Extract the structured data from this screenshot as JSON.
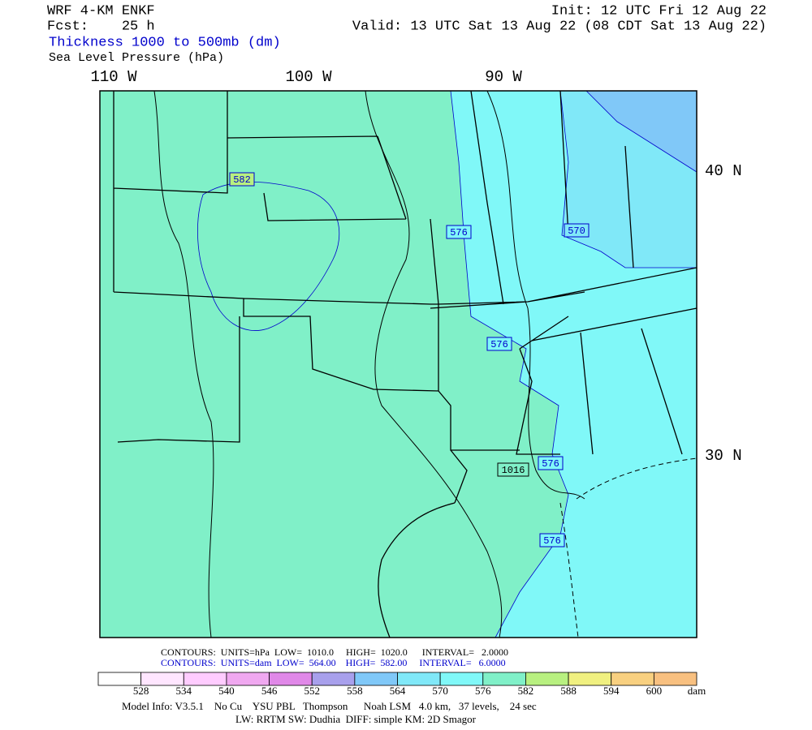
{
  "header": {
    "model": "WRF 4-KM ENKF",
    "forecast": "Fcst:    25 h",
    "field_shaded": "Thickness 1000 to 500mb (dm)",
    "field_contour": "Sea Level Pressure (hPa)",
    "init": "Init: 12 UTC Fri 12 Aug 22",
    "valid": "Valid: 13 UTC Sat 13 Aug 22 (08 CDT Sat 13 Aug 22)"
  },
  "map": {
    "longitude_labels": [
      "110 W",
      "100 W",
      "90 W"
    ],
    "latitude_labels": [
      "40 N",
      "30 N"
    ],
    "contour_labels": [
      "582",
      "576",
      "570",
      "576",
      "1016",
      "576",
      "576"
    ]
  },
  "legend": {
    "contours_pressure": "CONTOURS:  UNITS=hPa  LOW=  1010.0     HIGH=  1020.0      INTERVAL=   2.0000",
    "contours_thickness": "CONTOURS:  UNITS=dam  LOW=  564.00    HIGH=  582.00     INTERVAL=   6.0000",
    "colorbar": {
      "colors": [
        "#ffffff",
        "#ffe6ff",
        "#ffccff",
        "#f0a8f0",
        "#e088e8",
        "#a8a0ec",
        "#80c8f8",
        "#80e8f8",
        "#80f8f8",
        "#80f0c8",
        "#b8f080",
        "#f0f080",
        "#f8d080",
        "#f8c080"
      ],
      "labels": [
        "528",
        "534",
        "540",
        "546",
        "552",
        "558",
        "564",
        "570",
        "576",
        "582",
        "588",
        "594",
        "600"
      ],
      "unit": "dam"
    }
  },
  "footer": {
    "model_info": "Model Info: V3.5.1    No Cu    YSU PBL   Thompson      Noah LSM   4.0 km,   37 levels,    24 sec",
    "physics": "LW: RRTM SW: Dudhia  DIFF: simple KM: 2D Smagor"
  }
}
